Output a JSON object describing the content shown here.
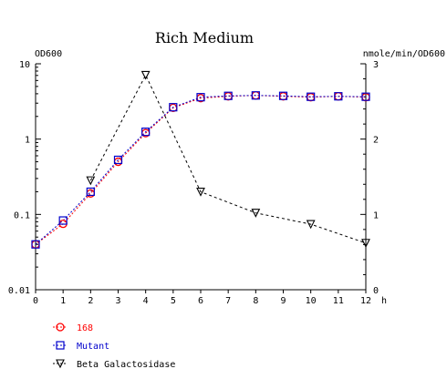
{
  "chart_data": {
    "type": "line",
    "title": "Rich Medium",
    "ylabel_left": "OD600",
    "ylabel_right": "nmole/min/OD600",
    "x_unit": "h",
    "x_ticks": [
      "0",
      "1",
      "2",
      "3",
      "4",
      "5",
      "6",
      "7",
      "8",
      "9",
      "10",
      "11",
      "12"
    ],
    "y_left_ticks": [
      "0.01",
      "0.1",
      "1",
      "10"
    ],
    "y_right_ticks": [
      "0",
      "1",
      "2",
      "3"
    ],
    "y_left_scale": "log",
    "y_left_range": [
      0.01,
      10
    ],
    "y_right_range": [
      0,
      3
    ],
    "x_range": [
      0,
      12
    ],
    "grid": false,
    "legend_position": "bottom-left",
    "series": [
      {
        "name": "168",
        "axis": "left",
        "marker": "circle",
        "color": "#ff0000",
        "x": [
          0,
          1,
          2,
          3,
          4,
          5,
          6,
          7,
          8,
          9,
          10,
          11,
          12
        ],
        "y": [
          0.04,
          0.075,
          0.19,
          0.5,
          1.2,
          2.6,
          3.5,
          3.7,
          3.8,
          3.7,
          3.6,
          3.7,
          3.6
        ]
      },
      {
        "name": "Mutant",
        "axis": "left",
        "marker": "square",
        "color": "#0000cc",
        "x": [
          0,
          1,
          2,
          3,
          4,
          5,
          6,
          7,
          8,
          9,
          10,
          11,
          12
        ],
        "y": [
          0.04,
          0.083,
          0.2,
          0.53,
          1.25,
          2.65,
          3.6,
          3.75,
          3.8,
          3.75,
          3.65,
          3.7,
          3.65
        ]
      },
      {
        "name": "Beta Galactosidase",
        "axis": "right",
        "marker": "triangle-down",
        "color": "#000000",
        "x": [
          2,
          4,
          6,
          8,
          10,
          12
        ],
        "y": [
          1.45,
          2.85,
          1.3,
          1.02,
          0.87,
          0.62
        ]
      }
    ]
  }
}
